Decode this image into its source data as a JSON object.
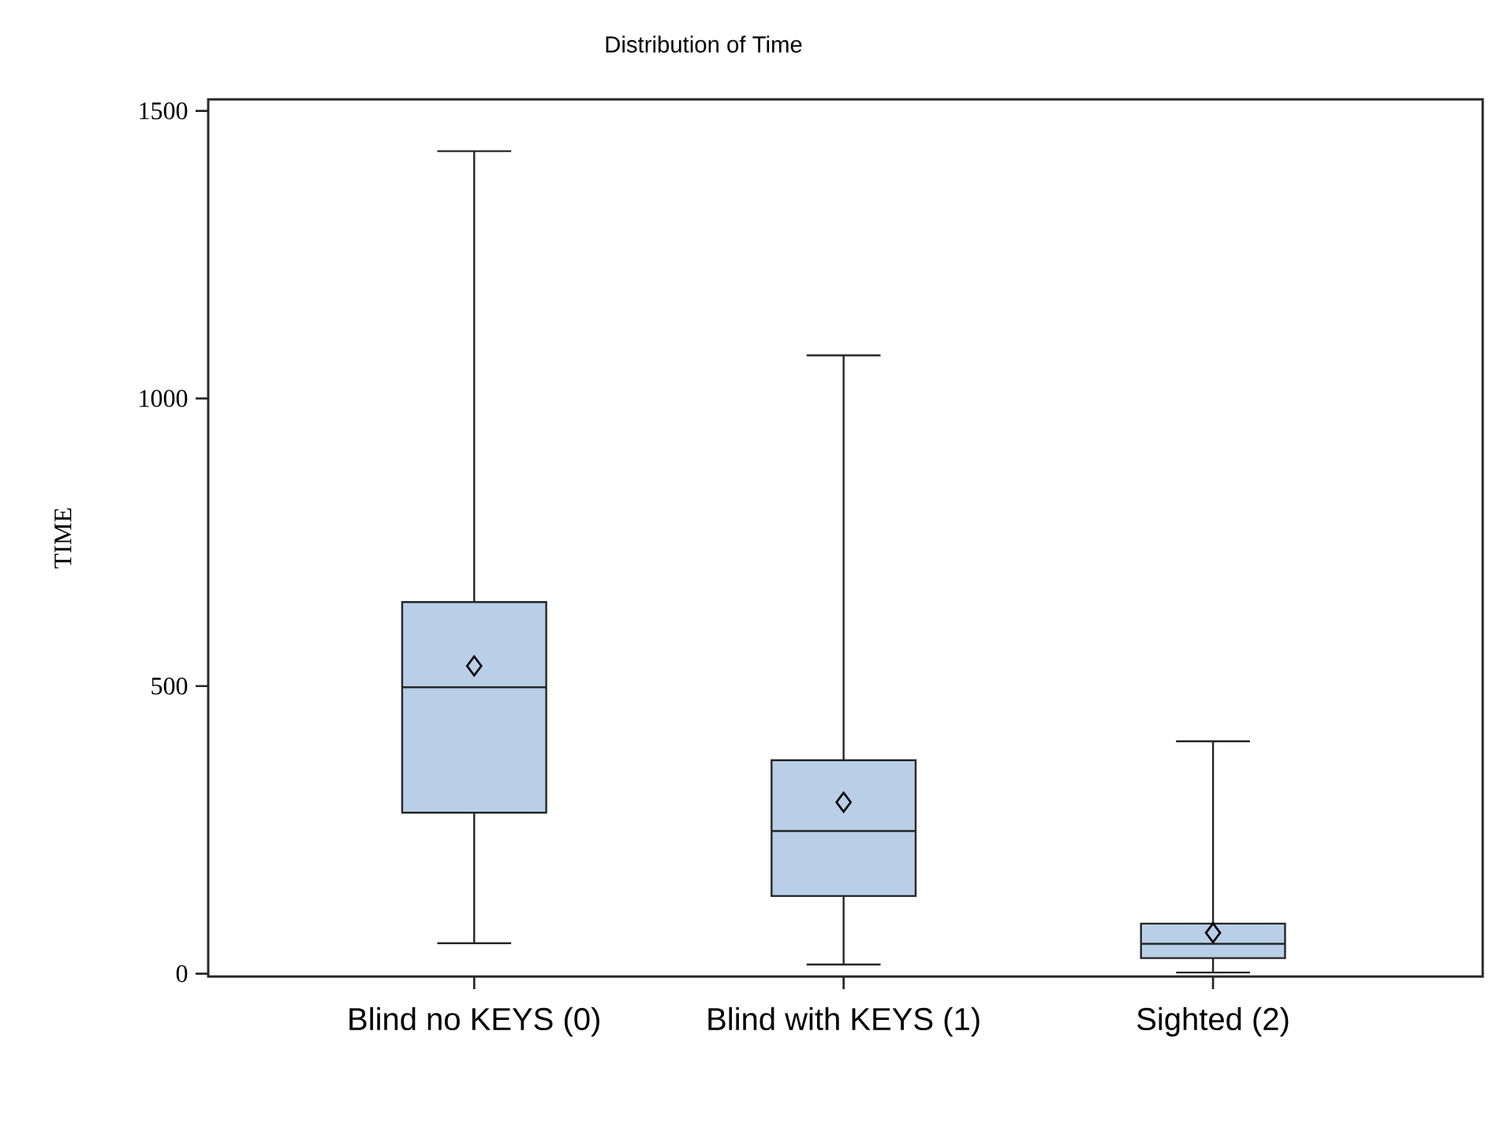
{
  "chart_data": {
    "type": "box",
    "title": "Distribution of Time",
    "ylabel": "TIME",
    "categories": [
      "Blind no KEYS (0)",
      "Blind with KEYS (1)",
      "Sighted (2)"
    ],
    "color": "#b9cfe8",
    "marker": "diamond",
    "boxes": [
      {
        "low": 53,
        "q1": 280,
        "median": 498,
        "q3": 646,
        "high": 1430,
        "mean": 535
      },
      {
        "low": 16,
        "q1": 135,
        "median": 248,
        "q3": 371,
        "high": 1075,
        "mean": 298
      },
      {
        "low": 2,
        "q1": 27,
        "median": 52,
        "q3": 87,
        "high": 404,
        "mean": 71
      }
    ],
    "ylim": [
      -5,
      1520
    ],
    "yticks": [
      0,
      500,
      1000,
      1500
    ]
  }
}
